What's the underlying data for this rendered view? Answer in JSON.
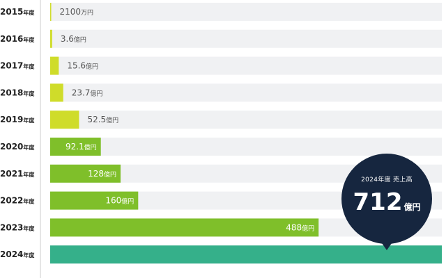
{
  "chart_data": {
    "type": "bar",
    "orientation": "horizontal",
    "categories": [
      "2015年度",
      "2016年度",
      "2017年度",
      "2018年度",
      "2019年度",
      "2020年度",
      "2021年度",
      "2022年度",
      "2023年度",
      "2024年度"
    ],
    "values_oku_yen": [
      0.21,
      3.6,
      15.6,
      23.7,
      52.5,
      92.1,
      128,
      160,
      488,
      712
    ],
    "data_labels": [
      {
        "num": "2100",
        "unit": "万円"
      },
      {
        "num": "3.6",
        "unit": "億円"
      },
      {
        "num": "15.6",
        "unit": "億円"
      },
      {
        "num": "23.7",
        "unit": "億円"
      },
      {
        "num": "52.5",
        "unit": "億円"
      },
      {
        "num": "92.1",
        "unit": "億円"
      },
      {
        "num": "128",
        "unit": "億円"
      },
      {
        "num": "160",
        "unit": "億円"
      },
      {
        "num": "488",
        "unit": "億円"
      },
      {
        "num": "",
        "unit": ""
      }
    ],
    "label_inside": [
      false,
      false,
      false,
      false,
      false,
      true,
      true,
      true,
      true,
      false
    ],
    "bar_colors": [
      "#cfdc2a",
      "#cfdc2a",
      "#cfdc2a",
      "#cfdc2a",
      "#cfdc2a",
      "#7fbf2a",
      "#7fbf2a",
      "#7fbf2a",
      "#7fbf2a",
      "#35b08a"
    ],
    "track_color": "#f0f1f3",
    "xlim": [
      0,
      712
    ],
    "grid": false,
    "legend": "none"
  },
  "callout": {
    "caption": "2024年度 売上高",
    "value": "712",
    "unit": "億円",
    "color": "#16263f"
  }
}
